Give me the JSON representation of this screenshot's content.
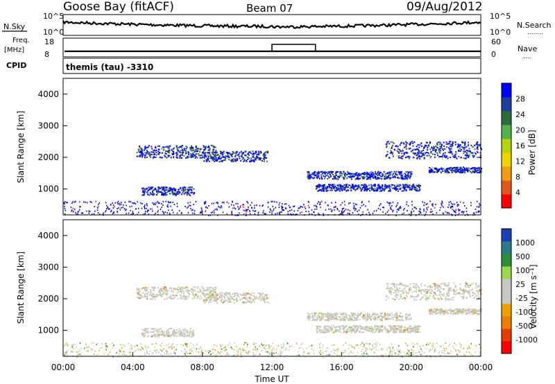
{
  "header": {
    "station": "Goose Bay (fitACF)",
    "beam": "Beam 07",
    "date": "09/Aug/2012"
  },
  "noise_panel": {
    "left_label": "N.Sky",
    "right_label": "N.Search",
    "right_dots": "........",
    "ticks_left": [
      "10^5",
      "10^0"
    ],
    "ticks_right": [
      "10^5",
      "10^0"
    ]
  },
  "freq_panel": {
    "left_label_top": "Freq.",
    "left_label_unit": "[MHz]",
    "left_ticks": [
      "18",
      "8"
    ],
    "right_label": "Nave",
    "right_dots": "....",
    "right_ticks": [
      "60",
      "0"
    ]
  },
  "cpid": {
    "label": "CPID",
    "value": "themis (tau) -3310"
  },
  "chart_data": [
    {
      "type": "heatmap",
      "quantity": "power",
      "ylabel": "Slant Range [km]",
      "yticks": [
        "4000",
        "3000",
        "2000",
        "1000"
      ],
      "ylim": [
        180,
        4500
      ],
      "colorbar_label": "Power [dB]",
      "colorbar_ticks": [
        "28",
        "24",
        "20",
        "16",
        "12",
        "8",
        "4"
      ],
      "colorbar_colors": [
        "#0000ff",
        "#1f3f9f",
        "#2e6b3c",
        "#55b14a",
        "#b5d40d",
        "#f0d400",
        "#f39c12",
        "#e4571b",
        "#ff0000"
      ],
      "echo_bands": [
        {
          "t_start": 4.2,
          "t_end": 8.8,
          "r_center": 2200,
          "r_width": 180
        },
        {
          "t_start": 8.0,
          "t_end": 11.8,
          "r_center": 2050,
          "r_width": 150
        },
        {
          "t_start": 4.5,
          "t_end": 7.5,
          "r_center": 950,
          "r_width": 120
        },
        {
          "t_start": 14.0,
          "t_end": 20.0,
          "r_center": 1450,
          "r_width": 110
        },
        {
          "t_start": 14.5,
          "t_end": 20.5,
          "r_center": 1060,
          "r_width": 100
        },
        {
          "t_start": 18.5,
          "t_end": 24.0,
          "r_center": 2250,
          "r_width": 250
        },
        {
          "t_start": 21.0,
          "t_end": 24.0,
          "r_center": 1620,
          "r_width": 80
        }
      ]
    },
    {
      "type": "heatmap",
      "quantity": "velocity",
      "ylabel": "Slant Range [km]",
      "yticks": [
        "4000",
        "3000",
        "2000",
        "1000"
      ],
      "ylim": [
        180,
        4500
      ],
      "xlabel": "Time UT",
      "xticks": [
        "00:00",
        "04:00",
        "08:00",
        "12:00",
        "16:00",
        "20:00",
        "00:00"
      ],
      "xlim_hours": [
        0,
        24
      ],
      "colorbar_label": "Velocity [m s⁻¹]",
      "colorbar_ticks": [
        "1000",
        "500",
        "100",
        "25",
        "-25",
        "-100",
        "-500",
        "-1000"
      ],
      "colorbar_colors": [
        "#1d3fb5",
        "#2a7a8c",
        "#2c8f3a",
        "#9ad94a",
        "#c8c8c0",
        "#c8c8c0",
        "#f0a000",
        "#ef7d00",
        "#e63c00",
        "#ff0000"
      ]
    }
  ]
}
